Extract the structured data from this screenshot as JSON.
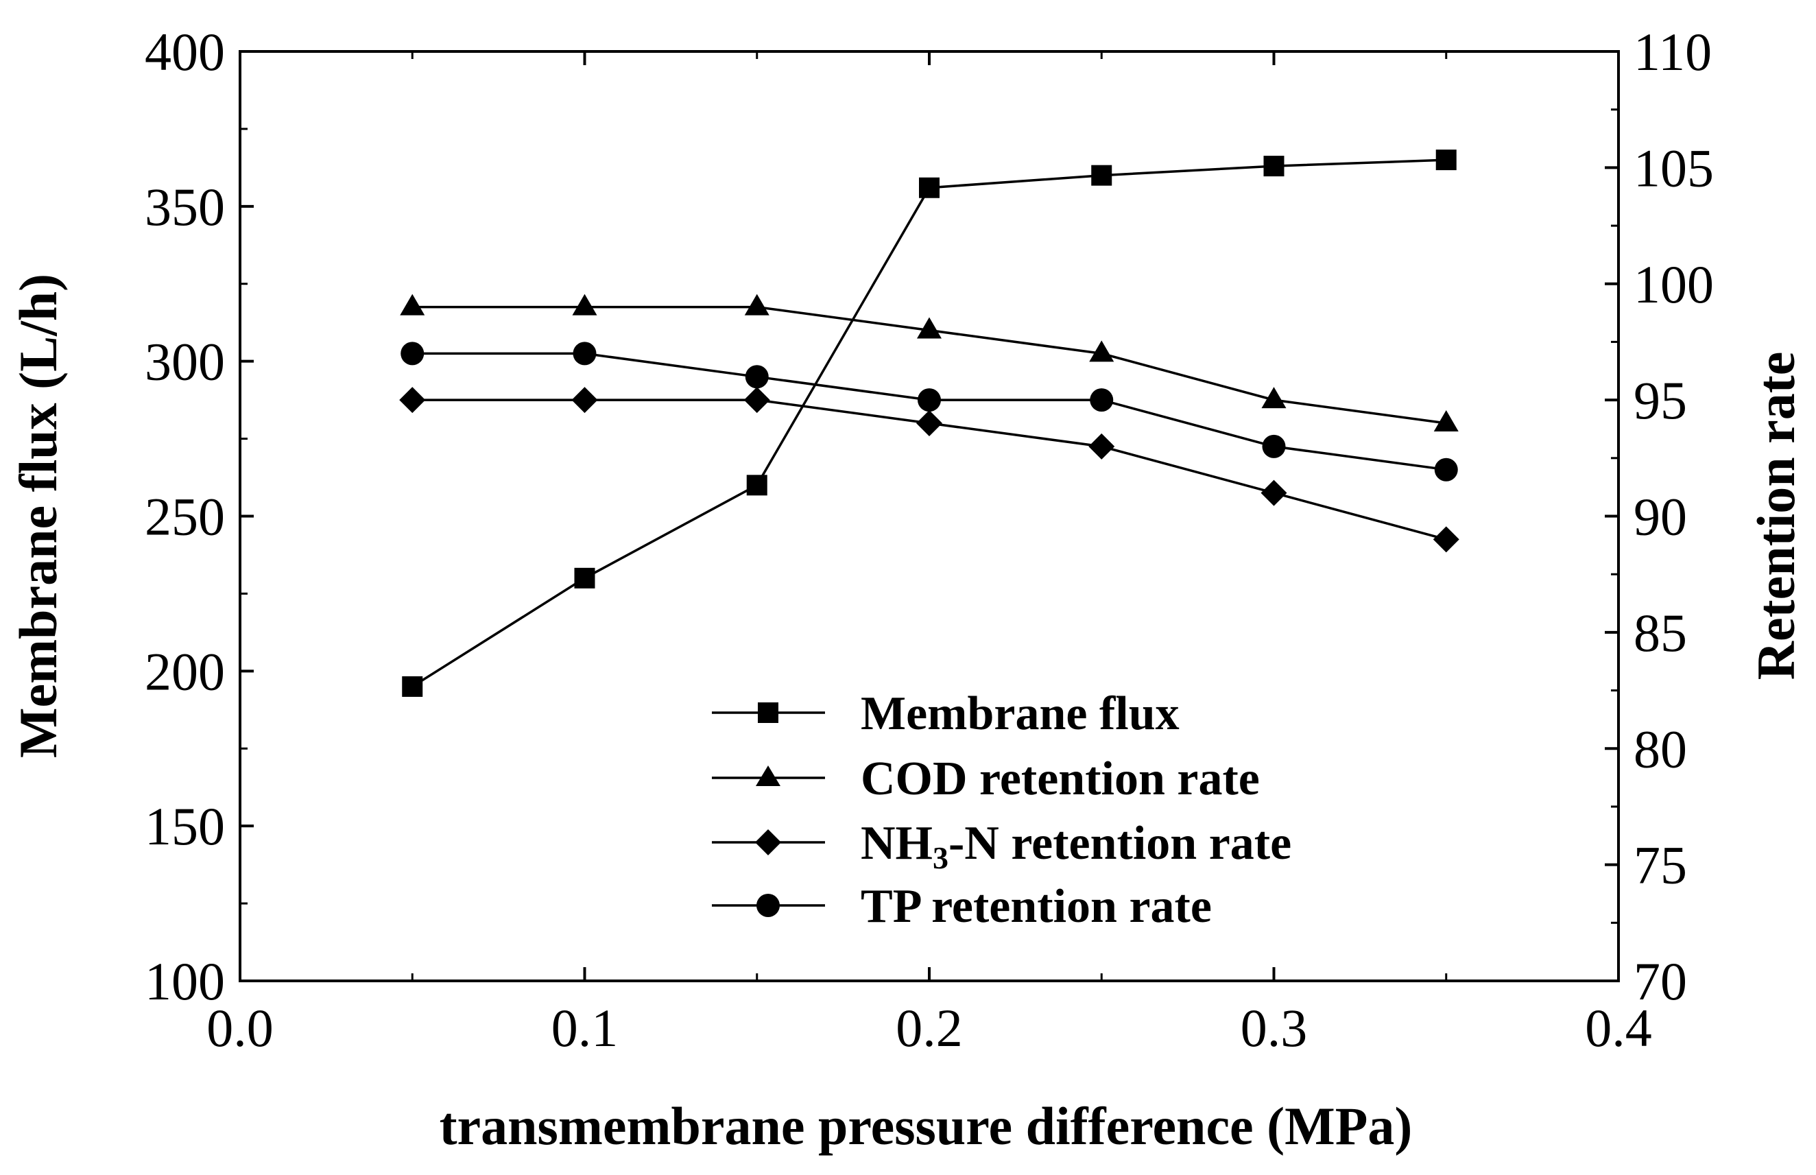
{
  "chart_data": {
    "type": "line",
    "xlabel": "transmembrane pressure difference (MPa)",
    "ylabel_left": "Membrane flux (L/h)",
    "ylabel_right": "Retention rate",
    "xlim": [
      0.0,
      0.4
    ],
    "ylim_left": [
      100,
      400
    ],
    "ylim_right": [
      70,
      110
    ],
    "x_ticks": [
      0.0,
      0.1,
      0.2,
      0.3,
      0.4
    ],
    "x_tick_labels": [
      "0.0",
      "0.1",
      "0.2",
      "0.3",
      "0.4"
    ],
    "y_left_ticks": [
      100,
      150,
      200,
      250,
      300,
      350,
      400
    ],
    "y_left_tick_labels": [
      "100",
      "150",
      "200",
      "250",
      "300",
      "350",
      "400"
    ],
    "y_right_ticks": [
      70,
      75,
      80,
      85,
      90,
      95,
      100,
      105,
      110
    ],
    "y_right_tick_labels": [
      "70",
      "75",
      "80",
      "85",
      "90",
      "95",
      "100",
      "105",
      "110"
    ],
    "grid": false,
    "legend_position": "bottom-center",
    "x": [
      0.05,
      0.1,
      0.15,
      0.2,
      0.25,
      0.3,
      0.35
    ],
    "series": [
      {
        "name": "Membrane flux",
        "axis": "left",
        "marker": "square",
        "values": [
          195,
          230,
          260,
          356,
          360,
          363,
          365
        ]
      },
      {
        "name": "COD retention rate",
        "axis": "right",
        "marker": "triangle",
        "values": [
          99,
          99,
          99,
          98,
          97,
          95,
          94
        ]
      },
      {
        "name": "NH3-N retention rate",
        "axis": "right",
        "marker": "diamond",
        "values": [
          95,
          95,
          95,
          94,
          93,
          91,
          89
        ]
      },
      {
        "name": "TP retention rate",
        "axis": "right",
        "marker": "circle",
        "values": [
          97,
          97,
          96,
          95,
          95,
          93,
          92
        ]
      }
    ],
    "legend": {
      "flux": "Membrane flux",
      "cod": "COD retention rate",
      "nh3_prefix": "NH",
      "nh3_sub": "3",
      "nh3_suffix": "-N retention rate",
      "tp": "TP retention rate"
    }
  }
}
